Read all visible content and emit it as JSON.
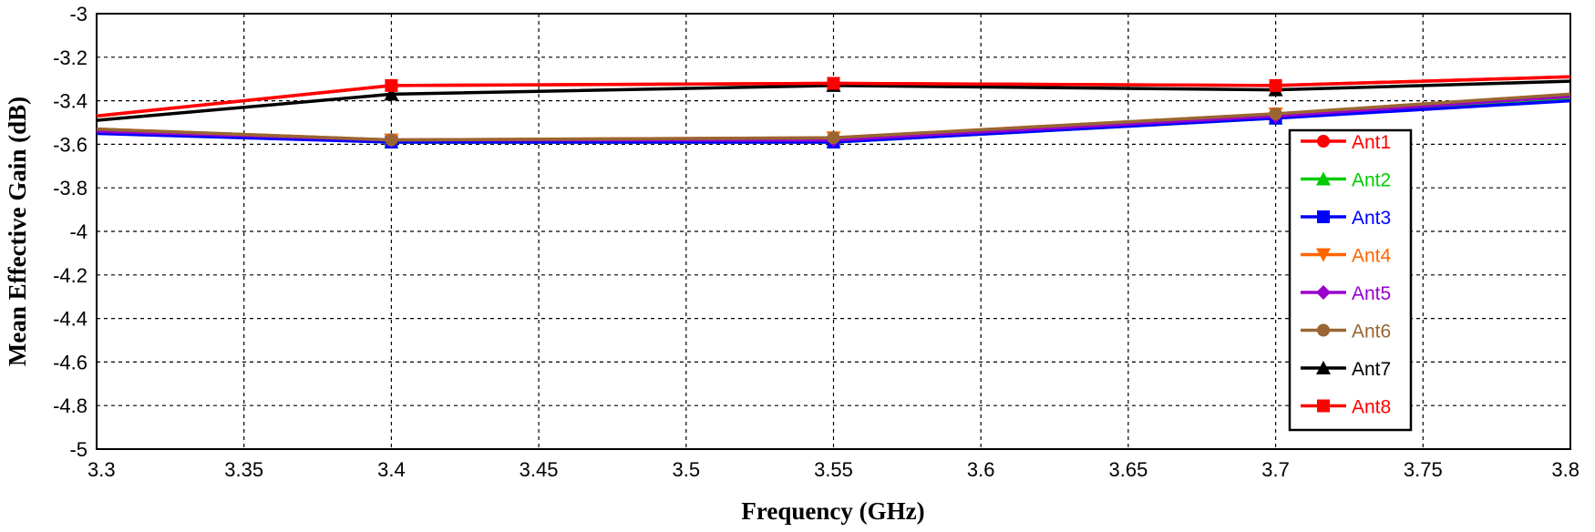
{
  "chart_data": {
    "type": "line",
    "title": "",
    "xlabel": "Frequency (GHz)",
    "ylabel": "Mean Effective Gain (dB)",
    "xlim": [
      3.3,
      3.8
    ],
    "ylim": [
      -5,
      -3
    ],
    "x_ticks": [
      "3.3",
      "3.35",
      "3.4",
      "3.45",
      "3.5",
      "3.55",
      "3.6",
      "3.65",
      "3.7",
      "3.75",
      "3.8"
    ],
    "y_ticks": [
      "-3",
      "-3.2",
      "-3.4",
      "-3.6",
      "-3.8",
      "-4",
      "-4.2",
      "-4.4",
      "-4.6",
      "-4.8",
      "-5"
    ],
    "grid": true,
    "legend_position": "right",
    "x": [
      3.3,
      3.4,
      3.55,
      3.7,
      3.8
    ],
    "series": [
      {
        "name": "Ant1",
        "color": "#ff0000",
        "marker": "circle",
        "values": [
          -3.47,
          -3.33,
          -3.32,
          -3.33,
          -3.29
        ]
      },
      {
        "name": "Ant2",
        "color": "#00cc00",
        "marker": "triangle",
        "values": [
          -3.54,
          -3.59,
          -3.59,
          -3.48,
          -3.39
        ]
      },
      {
        "name": "Ant3",
        "color": "#0000ff",
        "marker": "square",
        "values": [
          -3.55,
          -3.59,
          -3.59,
          -3.48,
          -3.4
        ]
      },
      {
        "name": "Ant4",
        "color": "#ff6600",
        "marker": "triangle-down",
        "values": [
          -3.53,
          -3.58,
          -3.57,
          -3.46,
          -3.37
        ]
      },
      {
        "name": "Ant5",
        "color": "#9900cc",
        "marker": "diamond",
        "values": [
          -3.54,
          -3.58,
          -3.58,
          -3.47,
          -3.38
        ]
      },
      {
        "name": "Ant6",
        "color": "#996633",
        "marker": "circle",
        "values": [
          -3.53,
          -3.58,
          -3.57,
          -3.46,
          -3.37
        ]
      },
      {
        "name": "Ant7",
        "color": "#000000",
        "marker": "triangle",
        "values": [
          -3.49,
          -3.37,
          -3.33,
          -3.35,
          -3.31
        ]
      },
      {
        "name": "Ant8",
        "color": "#ff0000",
        "marker": "square",
        "values": [
          -3.47,
          -3.33,
          -3.32,
          -3.33,
          -3.29
        ]
      }
    ]
  }
}
